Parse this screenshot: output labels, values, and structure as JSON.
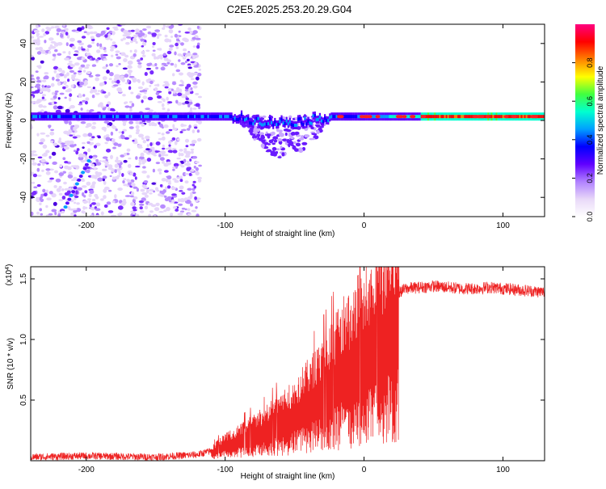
{
  "title": "C2E5.2025.253.20.29.G04",
  "chart_data": [
    {
      "type": "heatmap",
      "xlabel": "Height of straight line (km)",
      "ylabel": "Frequency (Hz)",
      "xlim": [
        -240,
        130
      ],
      "ylim": [
        -50,
        50
      ],
      "xticks": [
        -200,
        -100,
        0,
        100
      ],
      "yticks": [
        -40,
        -20,
        0,
        20,
        40
      ],
      "color_scale": {
        "label": "Normalized spectral amplitude",
        "range": [
          0,
          1
        ],
        "ticks": [
          0.0,
          0.2,
          0.4,
          0.6,
          0.8
        ],
        "colors": [
          "#ffffff",
          "#e8d8f8",
          "#b080ff",
          "#6000ff",
          "#0000ff",
          "#00a0ff",
          "#00ffd0",
          "#40ff40",
          "#ffff00",
          "#ff8000",
          "#ff0000",
          "#ff0080"
        ]
      },
      "features": [
        {
          "name": "noise_cloud",
          "x_range": [
            -240,
            -118
          ],
          "y_range": [
            -50,
            50
          ],
          "amplitude": 0.2
        },
        {
          "name": "carrier_line",
          "x_range": [
            -240,
            130
          ],
          "frequency_hz": 2,
          "amplitude_start": 0.35,
          "amplitude_end": 0.95
        },
        {
          "name": "dip_region",
          "x_range": [
            -90,
            -25
          ],
          "frequency_min_hz": -22
        }
      ]
    },
    {
      "type": "line",
      "xlabel": "Height of straight line (km)",
      "ylabel": "SNR (10 * v/v)",
      "y_multiplier": "(x10",
      "y_multiplier_exp": "4",
      "y_multiplier_close": ")",
      "xlim": [
        -240,
        130
      ],
      "ylim": [
        0,
        1.6
      ],
      "xticks": [
        -200,
        -100,
        0,
        100
      ],
      "yticks": [
        0.5,
        1.0,
        1.5
      ],
      "ytick_labels": [
        "0.5",
        "1.0",
        "1.5"
      ],
      "color": "#ee2222",
      "series": [
        {
          "name": "SNR",
          "x": [
            -240,
            -200,
            -150,
            -120,
            -110,
            -100,
            -90,
            -80,
            -70,
            -60,
            -50,
            -40,
            -30,
            -20,
            -15,
            -10,
            -5,
            0,
            5,
            10,
            15,
            20,
            30,
            40,
            50,
            60,
            70,
            80,
            90,
            100,
            110,
            120,
            130
          ],
          "values": [
            0.03,
            0.04,
            0.03,
            0.05,
            0.08,
            0.15,
            0.2,
            0.25,
            0.3,
            0.38,
            0.45,
            0.55,
            0.65,
            0.8,
            0.9,
            0.9,
            1.0,
            1.05,
            1.1,
            1.15,
            1.2,
            1.35,
            1.42,
            1.43,
            1.44,
            1.43,
            1.42,
            1.42,
            1.43,
            1.42,
            1.41,
            1.4,
            1.39
          ]
        }
      ]
    }
  ]
}
